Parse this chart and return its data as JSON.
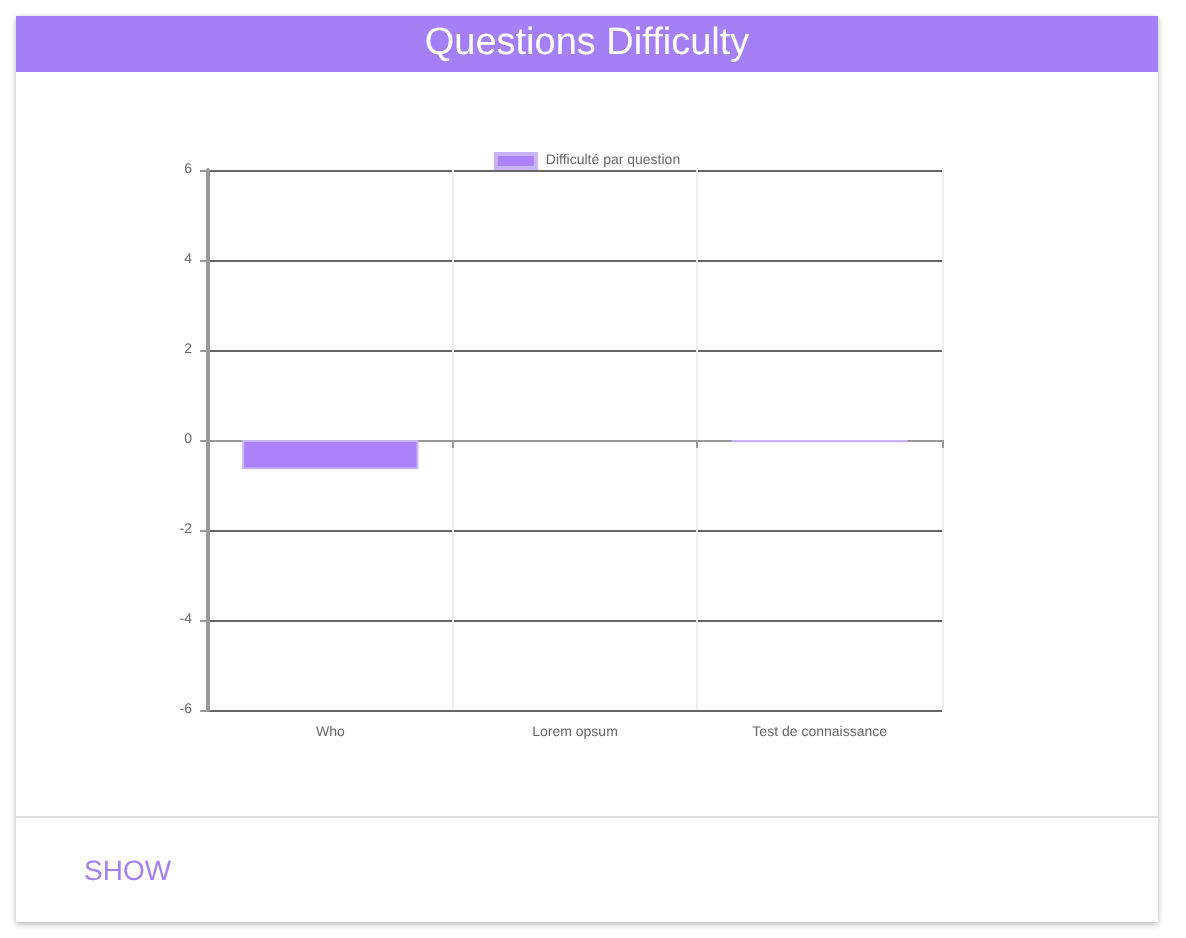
{
  "chart_data": {
    "type": "bar",
    "title": "Questions Difficulty",
    "categories": [
      "Who",
      "Lorem opsum",
      "Test de connaissance"
    ],
    "series": [
      {
        "name": "Difficulté par question",
        "color": "#ab82fa",
        "values": [
          -0.65,
          null,
          -0.05
        ]
      }
    ],
    "ylim": [
      -6,
      6
    ],
    "yticks": [
      -6,
      -4,
      -2,
      0,
      2,
      4,
      6
    ],
    "grid": true,
    "legend": "top",
    "annotations": [
      "SHOW"
    ]
  }
}
